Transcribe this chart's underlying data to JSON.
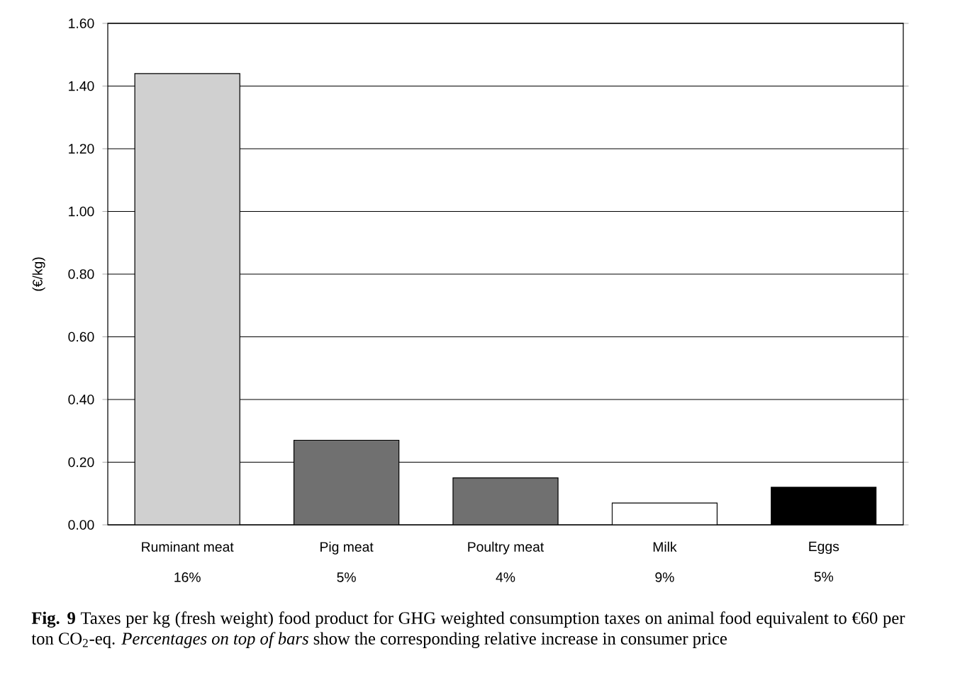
{
  "chart_data": {
    "type": "bar",
    "ylabel": "(€/kg)",
    "categories": [
      "Ruminant meat",
      "Pig meat",
      "Poultry meat",
      "Milk",
      "Eggs"
    ],
    "values": [
      1.44,
      0.27,
      0.15,
      0.07,
      0.12
    ],
    "colors": [
      "#d0d0d0",
      "#707070",
      "#707070",
      "#ffffff",
      "#000000"
    ],
    "ylim": [
      0,
      1.6
    ],
    "yticks": [
      {
        "value": 0,
        "label": "0.00"
      },
      {
        "value": 0.2,
        "label": "0.20"
      },
      {
        "value": 0.4,
        "label": "0.40"
      },
      {
        "value": 0.6,
        "label": "0.60"
      },
      {
        "value": 0.8,
        "label": "0.80"
      },
      {
        "value": 1.0,
        "label": "1.00"
      },
      {
        "value": 1.2,
        "label": "1.20"
      },
      {
        "value": 1.4,
        "label": "1.40"
      },
      {
        "value": 1.6,
        "label": "1.60"
      }
    ],
    "grid": "y",
    "annotations": [
      "16%",
      "5%",
      "4%",
      "9%",
      "5%",
      "**Fig. 9**  Taxes per kg (fresh weight) food product for GHG weighted consumption taxes on animal food equivalent to €60 per ton CO$_{2}$-eq. *Percentages on top of bars* show the corresponding relative increase in consumer price"
    ]
  }
}
